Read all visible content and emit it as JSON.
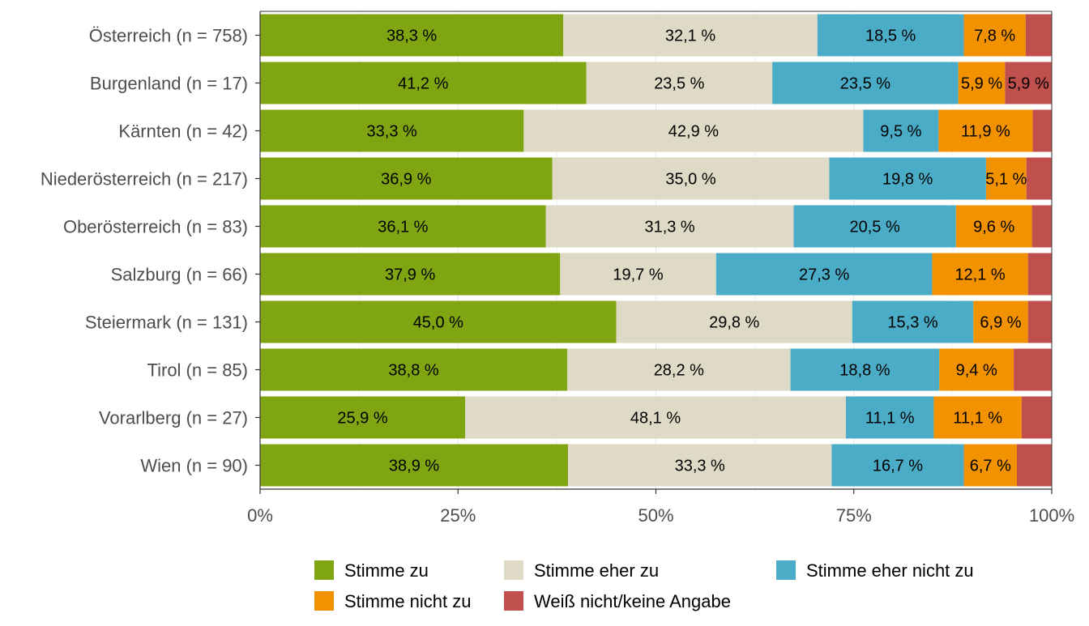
{
  "chart_data": {
    "type": "bar",
    "orientation": "horizontal",
    "stacked": true,
    "categories": [
      "Österreich (n = 758)",
      "Burgenland (n = 17)",
      "Kärnten (n = 42)",
      "Niederösterreich (n = 217)",
      "Oberösterreich (n = 83)",
      "Salzburg (n = 66)",
      "Steiermark (n = 131)",
      "Tirol (n = 85)",
      "Vorarlberg (n = 27)",
      "Wien (n = 90)"
    ],
    "series": [
      {
        "name": "Stimme zu",
        "color": "#80a512",
        "values": [
          38.3,
          41.2,
          33.3,
          36.9,
          36.1,
          37.9,
          45.0,
          38.8,
          25.9,
          38.9
        ],
        "labels": [
          "38,3 %",
          "41,2 %",
          "33,3 %",
          "36,9 %",
          "36,1 %",
          "37,9 %",
          "45,0 %",
          "38,8 %",
          "25,9 %",
          "38,9 %"
        ]
      },
      {
        "name": "Stimme eher zu",
        "color": "#dedac6",
        "values": [
          32.1,
          23.5,
          42.9,
          35.0,
          31.3,
          19.7,
          29.8,
          28.2,
          48.1,
          33.3
        ],
        "labels": [
          "32,1 %",
          "23,5 %",
          "42,9 %",
          "35,0 %",
          "31,3 %",
          "19,7 %",
          "29,8 %",
          "28,2 %",
          "48,1 %",
          "33,3 %"
        ]
      },
      {
        "name": "Stimme eher nicht zu",
        "color": "#4aacc6",
        "values": [
          18.5,
          23.5,
          9.5,
          19.8,
          20.5,
          27.3,
          15.3,
          18.8,
          11.1,
          16.7
        ],
        "labels": [
          "18,5 %",
          "23,5 %",
          "9,5 %",
          "19,8 %",
          "20,5 %",
          "27,3 %",
          "15,3 %",
          "18,8 %",
          "11,1 %",
          "16,7 %"
        ]
      },
      {
        "name": "Stimme nicht zu",
        "color": "#f39200",
        "values": [
          7.8,
          5.9,
          11.9,
          5.1,
          9.6,
          12.1,
          6.9,
          9.4,
          11.1,
          6.7
        ],
        "labels": [
          "7,8 %",
          "5,9 %",
          "11,9 %",
          "5,1 %",
          "9,6 %",
          "12,1 %",
          "6,9 %",
          "9,4 %",
          "11,1 %",
          "6,7 %"
        ]
      },
      {
        "name": "Weiß nicht/keine Angabe",
        "color": "#c0504d",
        "values": [
          3.3,
          5.9,
          2.4,
          3.2,
          2.5,
          3.0,
          3.0,
          4.8,
          3.8,
          4.4
        ],
        "labels": [
          "",
          "5,9 %",
          "",
          "",
          "",
          "",
          "",
          "",
          "",
          ""
        ]
      }
    ],
    "xlim": [
      0,
      100
    ],
    "xticks": [
      0,
      25,
      50,
      75,
      100
    ],
    "xtick_labels": [
      "0%",
      "25%",
      "50%",
      "75%",
      "100%"
    ],
    "grid": true,
    "legend_position": "bottom",
    "title": "",
    "xlabel": "",
    "ylabel": ""
  }
}
